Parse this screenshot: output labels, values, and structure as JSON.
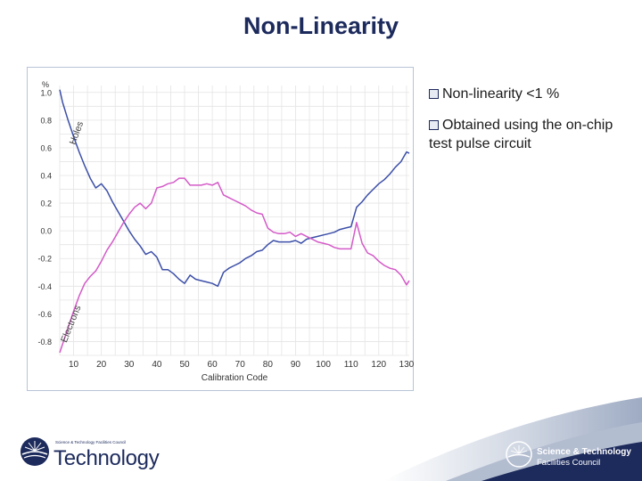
{
  "slide": {
    "title": "Non-Linearity"
  },
  "bullets": [
    "Non-linearity <1 %",
    "Obtained using the on-chip test pulse circuit"
  ],
  "chart_data": {
    "type": "line",
    "title": "",
    "xlabel": "Calibration Code",
    "ylabel": "%",
    "xlim": [
      5,
      131
    ],
    "ylim": [
      -0.9,
      1.05
    ],
    "x_ticks": [
      10,
      20,
      30,
      40,
      50,
      60,
      70,
      80,
      90,
      100,
      110,
      120,
      130
    ],
    "y_ticks": [
      -0.8,
      -0.6,
      -0.4,
      -0.2,
      0.0,
      0.2,
      0.4,
      0.6,
      0.8,
      1.0
    ],
    "y_tick_labels": [
      "-0.8",
      "-0.6",
      "-0.4",
      "-0.2",
      "0.0",
      "0.2",
      "0.4",
      "0.6",
      "0.8",
      "1.0"
    ],
    "grid": true,
    "series": [
      {
        "name": "Holes",
        "color": "#3c4fa8",
        "x": [
          5,
          6,
          8,
          10,
          12,
          14,
          16,
          18,
          20,
          22,
          24,
          26,
          28,
          30,
          32,
          34,
          36,
          38,
          40,
          42,
          44,
          46,
          48,
          50,
          52,
          54,
          56,
          58,
          60,
          62,
          64,
          66,
          68,
          70,
          72,
          74,
          76,
          78,
          80,
          82,
          84,
          86,
          88,
          90,
          92,
          94,
          96,
          98,
          100,
          102,
          104,
          106,
          108,
          110,
          112,
          114,
          116,
          118,
          120,
          122,
          124,
          126,
          128,
          130,
          131
        ],
        "values": [
          1.02,
          0.93,
          0.8,
          0.68,
          0.57,
          0.47,
          0.38,
          0.31,
          0.34,
          0.29,
          0.21,
          0.14,
          0.07,
          0.0,
          -0.06,
          -0.11,
          -0.17,
          -0.15,
          -0.19,
          -0.28,
          -0.28,
          -0.31,
          -0.35,
          -0.38,
          -0.32,
          -0.35,
          -0.36,
          -0.37,
          -0.38,
          -0.4,
          -0.3,
          -0.27,
          -0.25,
          -0.23,
          -0.2,
          -0.18,
          -0.15,
          -0.14,
          -0.1,
          -0.07,
          -0.08,
          -0.08,
          -0.08,
          -0.07,
          -0.09,
          -0.06,
          -0.05,
          -0.04,
          -0.03,
          -0.02,
          -0.01,
          0.01,
          0.02,
          0.03,
          0.17,
          0.21,
          0.26,
          0.3,
          0.34,
          0.37,
          0.41,
          0.46,
          0.5,
          0.57,
          0.56
        ]
      },
      {
        "name": "Electrons",
        "color": "#d45ac8",
        "x": [
          5,
          6,
          8,
          10,
          12,
          14,
          16,
          18,
          20,
          22,
          24,
          26,
          28,
          30,
          32,
          34,
          36,
          38,
          40,
          42,
          44,
          46,
          48,
          50,
          52,
          54,
          56,
          58,
          60,
          62,
          64,
          66,
          68,
          70,
          72,
          74,
          76,
          78,
          80,
          82,
          84,
          86,
          88,
          90,
          92,
          94,
          96,
          98,
          100,
          102,
          104,
          106,
          108,
          110,
          112,
          114,
          116,
          118,
          120,
          122,
          124,
          126,
          128,
          130,
          131
        ],
        "values": [
          -0.88,
          -0.82,
          -0.7,
          -0.58,
          -0.47,
          -0.38,
          -0.33,
          -0.29,
          -0.22,
          -0.14,
          -0.08,
          -0.01,
          0.06,
          0.12,
          0.17,
          0.2,
          0.16,
          0.2,
          0.31,
          0.32,
          0.34,
          0.35,
          0.38,
          0.38,
          0.33,
          0.33,
          0.33,
          0.34,
          0.33,
          0.35,
          0.26,
          0.24,
          0.22,
          0.2,
          0.18,
          0.15,
          0.13,
          0.12,
          0.02,
          -0.01,
          -0.02,
          -0.02,
          -0.01,
          -0.04,
          -0.02,
          -0.04,
          -0.06,
          -0.08,
          -0.09,
          -0.1,
          -0.12,
          -0.13,
          -0.13,
          -0.13,
          0.06,
          -0.09,
          -0.16,
          -0.18,
          -0.22,
          -0.25,
          -0.27,
          -0.28,
          -0.32,
          -0.39,
          -0.36
        ]
      }
    ],
    "annotations": [
      {
        "text": "Holes",
        "x": 12,
        "y": 0.7
      },
      {
        "text": "Electrons",
        "x": 10,
        "y": -0.68
      }
    ]
  },
  "footer": {
    "left_logo_small": "Science & Technology Facilities Council",
    "left_logo_big": "Technology",
    "right_logo_line1": "Science & Technology",
    "right_logo_line2": "Facilities Council",
    "accent_color": "#1c2a5c"
  }
}
